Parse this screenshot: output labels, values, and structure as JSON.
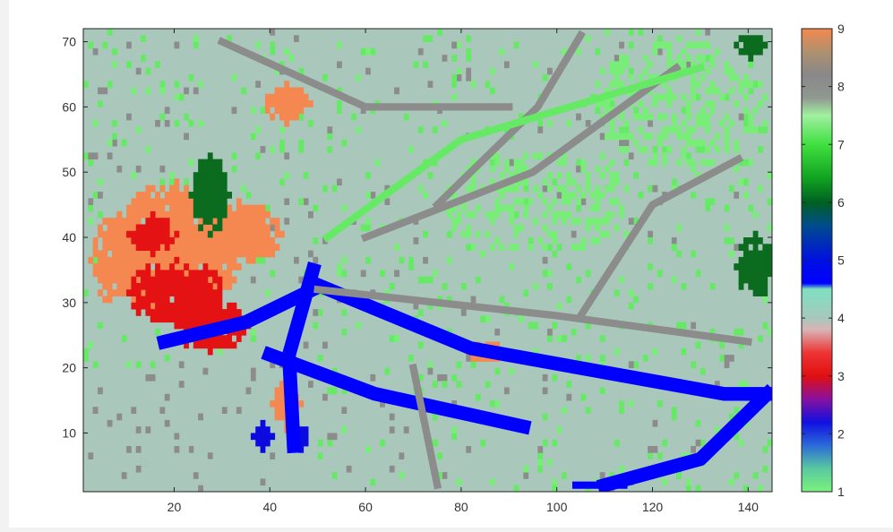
{
  "chart_data": {
    "type": "heatmap",
    "title": "",
    "xlabel": "",
    "ylabel": "",
    "xlim": [
      1,
      145
    ],
    "ylim": [
      1,
      72
    ],
    "x_ticks": [
      "20",
      "40",
      "60",
      "80",
      "100",
      "120",
      "140"
    ],
    "y_ticks": [
      "10",
      "20",
      "30",
      "40",
      "50",
      "60",
      "70"
    ],
    "background_class": 4,
    "colorbar": {
      "range": [
        1,
        9
      ],
      "tick_labels": [
        "1",
        "2",
        "3",
        "4",
        "5",
        "6",
        "7",
        "8",
        "9"
      ],
      "stops": [
        {
          "v": 1.0,
          "color": "#7cf27c"
        },
        {
          "v": 1.4,
          "color": "#58c8a0"
        },
        {
          "v": 1.8,
          "color": "#2c6ad8"
        },
        {
          "v": 2.2,
          "color": "#1010e0"
        },
        {
          "v": 2.6,
          "color": "#8a10a0"
        },
        {
          "v": 3.0,
          "color": "#e01010"
        },
        {
          "v": 3.4,
          "color": "#ee3434"
        },
        {
          "v": 3.8,
          "color": "#d8b4b4"
        },
        {
          "v": 4.0,
          "color": "#a6c8bc"
        },
        {
          "v": 4.5,
          "color": "#80e0c0"
        },
        {
          "v": 4.6,
          "color": "#0000ff"
        },
        {
          "v": 5.0,
          "color": "#0010e0"
        },
        {
          "v": 5.6,
          "color": "#004c8c"
        },
        {
          "v": 6.0,
          "color": "#006020"
        },
        {
          "v": 6.4,
          "color": "#10a020"
        },
        {
          "v": 7.0,
          "color": "#40e040"
        },
        {
          "v": 7.5,
          "color": "#a0f0a0"
        },
        {
          "v": 7.8,
          "color": "#909890"
        },
        {
          "v": 8.2,
          "color": "#888888"
        },
        {
          "v": 8.6,
          "color": "#b09070"
        },
        {
          "v": 9.0,
          "color": "#f4884c"
        }
      ]
    },
    "class_colors": {
      "1": "#78ee78",
      "2": "#0b0bdf",
      "3": "#e41212",
      "4": "#a9c7bb",
      "5": "#0000ff",
      "6": "#0b6b1f",
      "7": "#66ea66",
      "8": "#8c8c8c",
      "9": "#f48850"
    },
    "regions": [
      {
        "class": 9,
        "shape": "ellipse",
        "cx": 20,
        "cy": 38,
        "rx": 14,
        "ry": 10
      },
      {
        "class": 9,
        "shape": "ellipse",
        "cx": 33,
        "cy": 40,
        "rx": 9,
        "ry": 5
      },
      {
        "class": 9,
        "shape": "ellipse",
        "cx": 8,
        "cy": 36,
        "rx": 6,
        "ry": 7
      },
      {
        "class": 3,
        "shape": "ellipse",
        "cx": 20,
        "cy": 31,
        "rx": 10,
        "ry": 5
      },
      {
        "class": 3,
        "shape": "ellipse",
        "cx": 27,
        "cy": 26,
        "rx": 8,
        "ry": 4
      },
      {
        "class": 3,
        "shape": "ellipse",
        "cx": 15,
        "cy": 40,
        "rx": 5,
        "ry": 3
      },
      {
        "class": 6,
        "shape": "ellipse",
        "cx": 27,
        "cy": 46,
        "rx": 4,
        "ry": 6
      },
      {
        "class": 9,
        "shape": "ellipse",
        "cx": 43,
        "cy": 14,
        "rx": 3,
        "ry": 4
      },
      {
        "class": 9,
        "shape": "ellipse",
        "cx": 84,
        "cy": 22,
        "rx": 4,
        "ry": 2
      },
      {
        "class": 9,
        "shape": "ellipse",
        "cx": 43,
        "cy": 60,
        "rx": 5,
        "ry": 3
      },
      {
        "class": 6,
        "shape": "ellipse",
        "cx": 141,
        "cy": 35,
        "rx": 4,
        "ry": 5
      },
      {
        "class": 6,
        "shape": "ellipse",
        "cx": 140,
        "cy": 69,
        "rx": 3,
        "ry": 2
      },
      {
        "class": 1,
        "shape": "ellipse",
        "cx": 125,
        "cy": 60,
        "rx": 18,
        "ry": 10
      },
      {
        "class": 1,
        "shape": "ellipse",
        "cx": 95,
        "cy": 45,
        "rx": 20,
        "ry": 8
      },
      {
        "class": 2,
        "shape": "ellipse",
        "cx": 38,
        "cy": 9,
        "rx": 2,
        "ry": 2
      },
      {
        "class": 2,
        "shape": "ellipse",
        "cx": 46,
        "cy": 9,
        "rx": 2,
        "ry": 2
      }
    ],
    "lines": [
      {
        "class": 5,
        "width": 2,
        "points": [
          [
            49,
            33
          ],
          [
            82,
            23
          ],
          [
            135,
            16
          ],
          [
            144,
            16
          ]
        ]
      },
      {
        "class": 5,
        "width": 2,
        "points": [
          [
            40,
            22
          ],
          [
            62,
            16
          ],
          [
            93,
            11
          ]
        ]
      },
      {
        "class": 5,
        "width": 2,
        "points": [
          [
            49,
            35
          ],
          [
            44,
            22
          ],
          [
            45,
            8
          ]
        ]
      },
      {
        "class": 5,
        "width": 2,
        "points": [
          [
            18,
            24
          ],
          [
            35,
            27
          ],
          [
            49,
            32
          ]
        ]
      },
      {
        "class": 5,
        "width": 2,
        "points": [
          [
            110,
            2
          ],
          [
            130,
            6
          ],
          [
            144,
            16
          ]
        ]
      },
      {
        "class": 5,
        "width": 1,
        "points": [
          [
            104,
            2
          ],
          [
            114,
            2
          ]
        ]
      },
      {
        "class": 8,
        "width": 1,
        "points": [
          [
            50,
            32
          ],
          [
            100,
            28
          ],
          [
            140,
            24
          ]
        ]
      },
      {
        "class": 8,
        "width": 1,
        "points": [
          [
            60,
            40
          ],
          [
            95,
            50
          ],
          [
            125,
            66
          ]
        ]
      },
      {
        "class": 8,
        "width": 1,
        "points": [
          [
            75,
            45
          ],
          [
            96,
            60
          ],
          [
            105,
            71
          ]
        ]
      },
      {
        "class": 8,
        "width": 1,
        "points": [
          [
            70,
            20
          ],
          [
            75,
            2
          ]
        ]
      },
      {
        "class": 8,
        "width": 1,
        "points": [
          [
            30,
            70
          ],
          [
            60,
            60
          ],
          [
            90,
            60
          ]
        ]
      },
      {
        "class": 8,
        "width": 1,
        "points": [
          [
            105,
            28
          ],
          [
            120,
            45
          ],
          [
            138,
            52
          ]
        ]
      },
      {
        "class": 7,
        "width": 1,
        "points": [
          [
            52,
            40
          ],
          [
            80,
            55
          ],
          [
            130,
            66
          ]
        ]
      }
    ]
  }
}
